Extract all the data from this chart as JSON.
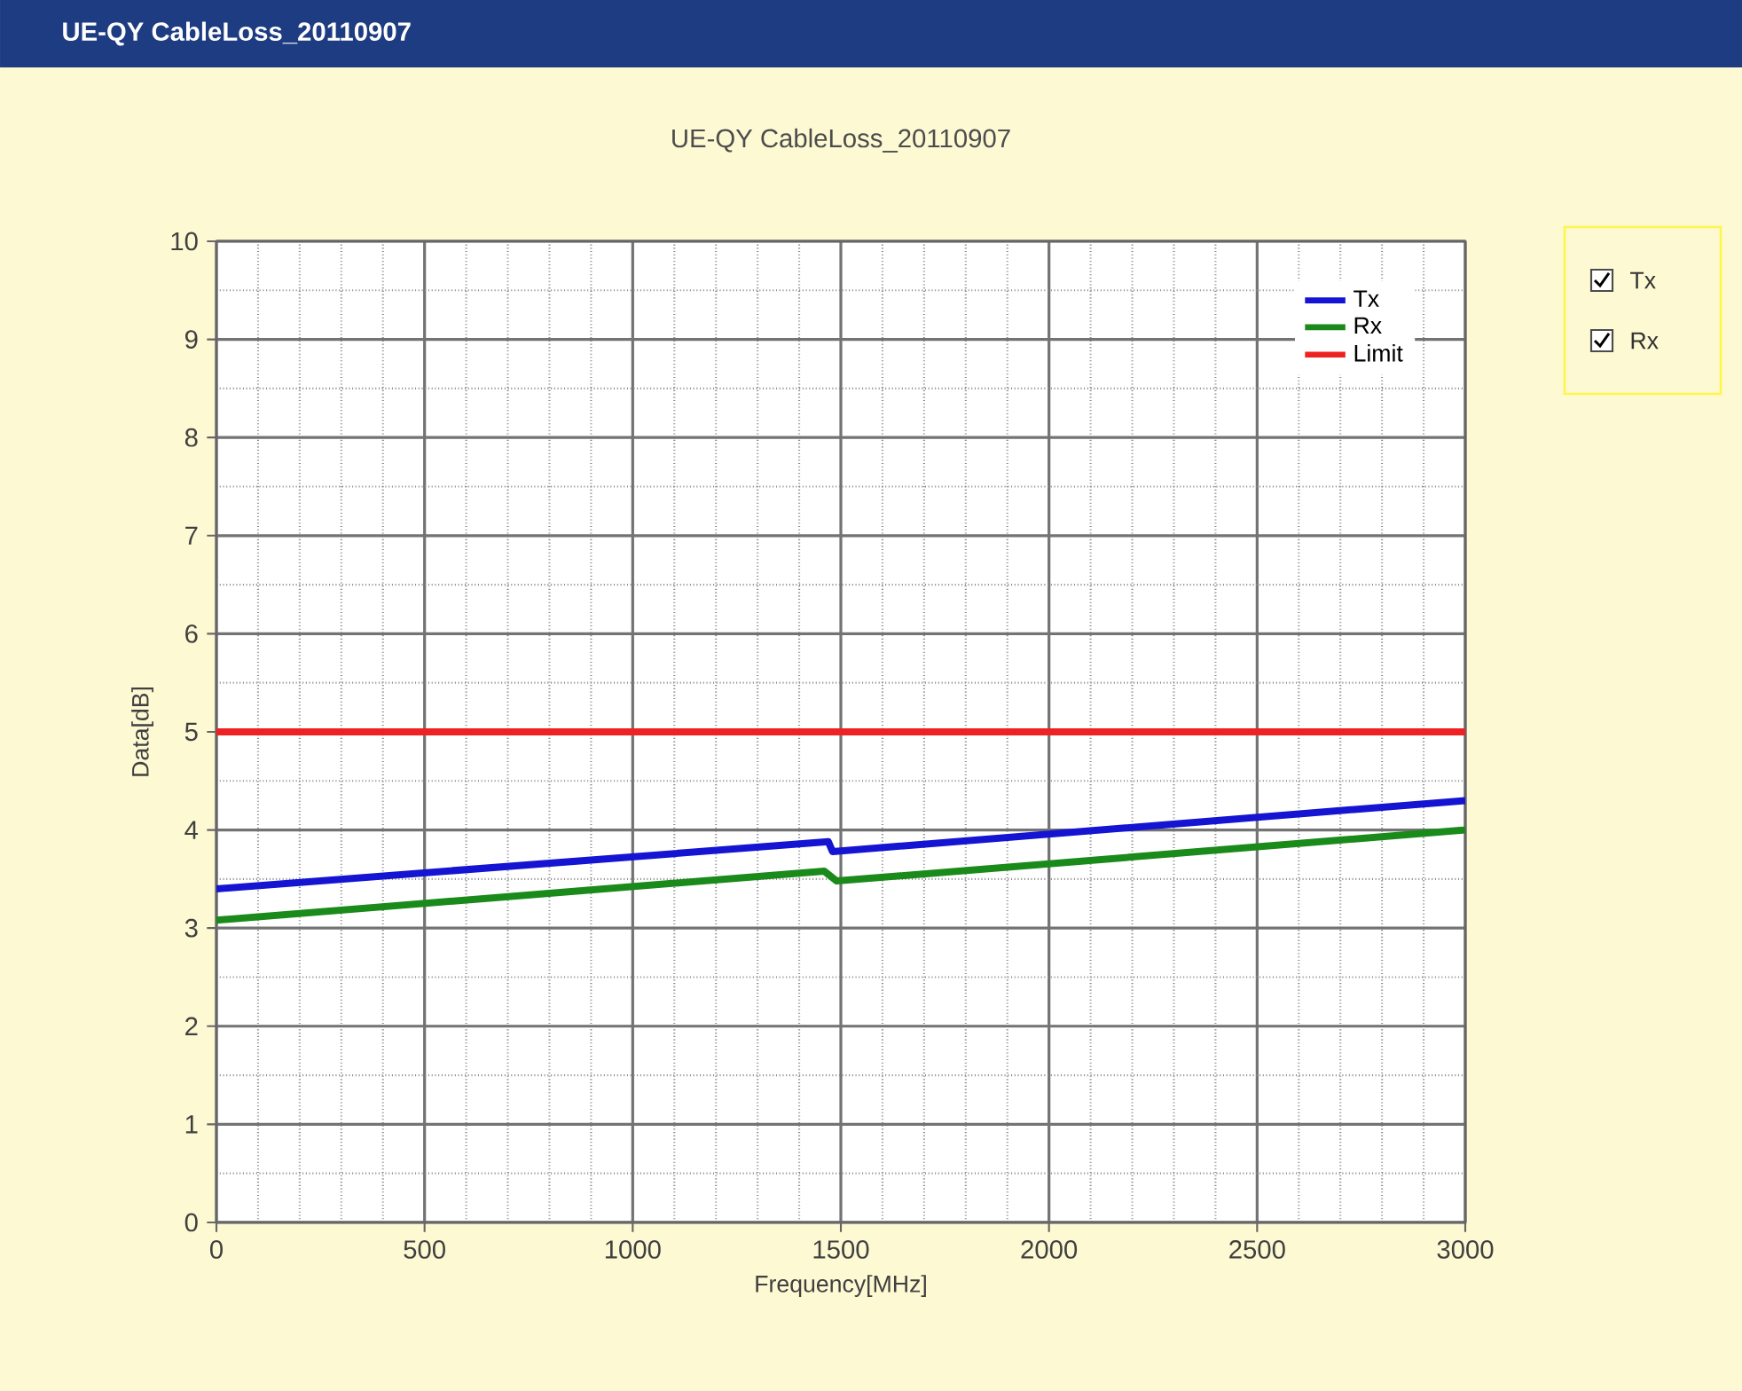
{
  "chart_data": {
    "type": "line",
    "title": "UE-QY CableLoss_20110907",
    "xlabel": "Frequency[MHz]",
    "ylabel": "Data[dB]",
    "xlim": [
      0,
      3000
    ],
    "xticks": [
      0,
      500,
      1000,
      1500,
      2000,
      2500,
      3000
    ],
    "ylim": [
      0,
      10
    ],
    "yticks": [
      0,
      1,
      2,
      3,
      4,
      5,
      6,
      7,
      8,
      9,
      10
    ],
    "grid": true,
    "legend": "top right",
    "marker": "none",
    "line_style": "solid",
    "annotations": [
      "UE-QY CableLoss_20110907",
      "Tx",
      "Rx"
    ],
    "series": [
      {
        "name": "Tx",
        "color": "#1414d2",
        "x": [
          0,
          1470,
          1480,
          3000
        ],
        "values": [
          3.4,
          3.88,
          3.78,
          4.3
        ]
      },
      {
        "name": "Rx",
        "color": "#1a8a1a",
        "x": [
          0,
          1460,
          1490,
          3000
        ],
        "values": [
          3.08,
          3.58,
          3.48,
          4.0
        ]
      },
      {
        "name": "Limit",
        "color": "#ee2222",
        "x": [
          0,
          3000
        ],
        "values": [
          5,
          5
        ]
      }
    ]
  }
}
